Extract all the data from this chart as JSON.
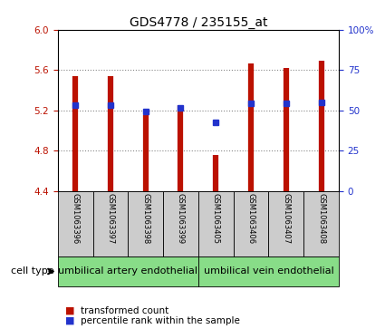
{
  "title": "GDS4778 / 235155_at",
  "samples": [
    "GSM1063396",
    "GSM1063397",
    "GSM1063398",
    "GSM1063399",
    "GSM1063405",
    "GSM1063406",
    "GSM1063407",
    "GSM1063408"
  ],
  "red_values": [
    5.54,
    5.54,
    5.15,
    5.25,
    4.76,
    5.66,
    5.62,
    5.69
  ],
  "blue_values_y": [
    5.25,
    5.25,
    5.19,
    5.22,
    5.08,
    5.27,
    5.27,
    5.28
  ],
  "y_min": 4.4,
  "y_max": 6.0,
  "y_ticks": [
    4.4,
    4.8,
    5.2,
    5.6,
    6.0
  ],
  "right_y_ticks": [
    0,
    25,
    50,
    75,
    100
  ],
  "right_y_labels": [
    "0",
    "25",
    "50",
    "75",
    "100%"
  ],
  "cell_type_groups": [
    {
      "label": "umbilical artery endothelial",
      "start": 0,
      "end": 4
    },
    {
      "label": "umbilical vein endothelial",
      "start": 4,
      "end": 8
    }
  ],
  "cell_type_label": "cell type",
  "legend_red": "transformed count",
  "legend_blue": "percentile rank within the sample",
  "bar_color": "#BB1100",
  "blue_color": "#2233CC",
  "grid_color": "#888888",
  "bg_plot": "#ffffff",
  "bg_xtick": "#cccccc",
  "bg_group": "#88DD88",
  "title_fontsize": 10,
  "tick_fontsize": 7.5,
  "sample_fontsize": 6,
  "group_fontsize": 8,
  "legend_fontsize": 7.5
}
